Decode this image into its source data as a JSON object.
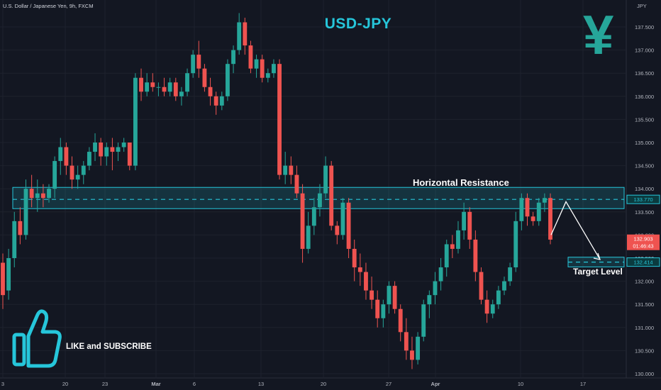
{
  "header": {
    "symbol_label": "U.S. Dollar / Japanese Yen, 9h, FXCM",
    "currency_label": "JPY"
  },
  "overlay": {
    "title": "USD-JPY",
    "yen_glyph": "¥",
    "like_text": "LIKE and SUBSCRIBE",
    "resistance_label": "Horizontal Resistance",
    "target_label": "Target Level"
  },
  "chart_data": {
    "type": "candlestick",
    "title": "",
    "ylim": [
      129.9,
      137.85
    ],
    "y_ticks": [
      "137.500",
      "137.000",
      "136.500",
      "136.000",
      "135.500",
      "135.000",
      "134.500",
      "134.000",
      "133.500",
      "133.000",
      "132.500",
      "132.000",
      "131.500",
      "131.000",
      "130.500",
      "130.000"
    ],
    "x_ticks": [
      "3",
      "20",
      "23",
      "Mar",
      "6",
      "13",
      "20",
      "27",
      "Apr",
      "10",
      "17"
    ],
    "current_price": "132.903",
    "countdown": "01:46:43",
    "resistance_zone": {
      "top": 134.03,
      "bottom": 133.57,
      "level": "133.770"
    },
    "target_zone": {
      "top": 132.52,
      "bottom": 132.31,
      "level": "132.414"
    },
    "projection": [
      133.77,
      133.0,
      132.5
    ],
    "colors": {
      "up": "#26a69a",
      "down": "#ef5350",
      "zone": "#26c6da",
      "background": "#131722"
    },
    "candles": [
      [
        132.4,
        132.6,
        131.4,
        131.7
      ],
      [
        131.8,
        132.7,
        131.6,
        132.5
      ],
      [
        132.5,
        133.5,
        132.3,
        133.3
      ],
      [
        133.3,
        133.6,
        132.8,
        133.0
      ],
      [
        133.0,
        134.2,
        132.9,
        134.0
      ],
      [
        134.0,
        134.3,
        133.6,
        133.8
      ],
      [
        133.8,
        134.2,
        133.5,
        133.9
      ],
      [
        133.9,
        134.1,
        133.6,
        133.8
      ],
      [
        133.8,
        134.1,
        133.7,
        134.0
      ],
      [
        134.0,
        134.7,
        133.8,
        134.6
      ],
      [
        134.6,
        135.1,
        134.3,
        134.9
      ],
      [
        134.9,
        135.0,
        134.3,
        134.5
      ],
      [
        134.5,
        134.7,
        134.0,
        134.2
      ],
      [
        134.2,
        134.5,
        134.0,
        134.3
      ],
      [
        134.3,
        134.6,
        134.1,
        134.5
      ],
      [
        134.5,
        134.9,
        134.4,
        134.8
      ],
      [
        134.8,
        135.2,
        134.6,
        135.0
      ],
      [
        135.0,
        135.1,
        134.5,
        134.7
      ],
      [
        134.7,
        135.0,
        134.5,
        134.9
      ],
      [
        134.9,
        135.1,
        134.4,
        134.8
      ],
      [
        134.8,
        135.0,
        134.6,
        134.9
      ],
      [
        134.9,
        135.1,
        134.8,
        135.0
      ],
      [
        135.0,
        135.0,
        134.4,
        134.5
      ],
      [
        134.5,
        136.5,
        134.4,
        136.4
      ],
      [
        136.4,
        136.6,
        135.9,
        136.1
      ],
      [
        136.1,
        136.5,
        136.0,
        136.3
      ],
      [
        136.3,
        136.5,
        136.1,
        136.2
      ],
      [
        136.2,
        136.3,
        136.0,
        136.2
      ],
      [
        136.2,
        136.4,
        136.0,
        136.1
      ],
      [
        136.1,
        136.4,
        136.0,
        136.3
      ],
      [
        136.3,
        136.4,
        135.9,
        136.0
      ],
      [
        136.0,
        136.2,
        135.8,
        136.1
      ],
      [
        136.1,
        136.6,
        136.0,
        136.5
      ],
      [
        136.5,
        137.0,
        136.4,
        136.9
      ],
      [
        136.9,
        137.2,
        136.4,
        136.6
      ],
      [
        136.6,
        136.7,
        136.1,
        136.2
      ],
      [
        136.2,
        136.4,
        135.8,
        136.0
      ],
      [
        136.0,
        136.1,
        135.6,
        135.8
      ],
      [
        135.8,
        136.1,
        135.7,
        136.0
      ],
      [
        136.0,
        136.8,
        135.9,
        136.7
      ],
      [
        136.7,
        137.1,
        136.5,
        137.0
      ],
      [
        137.0,
        137.8,
        136.9,
        137.6
      ],
      [
        137.6,
        137.7,
        136.9,
        137.1
      ],
      [
        137.1,
        137.2,
        136.5,
        136.6
      ],
      [
        136.6,
        136.9,
        136.4,
        136.8
      ],
      [
        136.8,
        136.9,
        136.3,
        136.4
      ],
      [
        136.4,
        136.6,
        136.3,
        136.5
      ],
      [
        136.5,
        136.8,
        136.4,
        136.7
      ],
      [
        136.7,
        136.8,
        134.2,
        134.3
      ],
      [
        134.3,
        134.8,
        134.1,
        134.5
      ],
      [
        134.5,
        134.7,
        134.1,
        134.3
      ],
      [
        134.3,
        134.5,
        133.8,
        133.9
      ],
      [
        133.9,
        134.1,
        132.4,
        132.7
      ],
      [
        132.7,
        133.5,
        132.6,
        133.2
      ],
      [
        133.2,
        133.8,
        133.0,
        133.6
      ],
      [
        133.6,
        134.1,
        133.4,
        133.9
      ],
      [
        133.9,
        134.7,
        133.8,
        134.5
      ],
      [
        134.5,
        134.6,
        133.1,
        133.2
      ],
      [
        133.2,
        133.3,
        132.8,
        133.0
      ],
      [
        133.0,
        133.8,
        132.9,
        133.7
      ],
      [
        133.7,
        133.8,
        132.5,
        132.7
      ],
      [
        132.7,
        132.9,
        132.0,
        132.3
      ],
      [
        132.3,
        132.6,
        131.9,
        132.2
      ],
      [
        132.2,
        132.4,
        131.6,
        131.8
      ],
      [
        131.8,
        132.1,
        131.4,
        131.6
      ],
      [
        131.6,
        131.8,
        131.0,
        131.2
      ],
      [
        131.2,
        131.6,
        131.0,
        131.5
      ],
      [
        131.5,
        132.0,
        131.3,
        131.9
      ],
      [
        131.9,
        132.0,
        131.3,
        131.4
      ],
      [
        131.4,
        131.5,
        130.7,
        130.9
      ],
      [
        130.9,
        131.2,
        130.3,
        130.5
      ],
      [
        130.5,
        130.8,
        130.1,
        130.3
      ],
      [
        130.3,
        130.9,
        130.2,
        130.8
      ],
      [
        130.8,
        131.6,
        130.7,
        131.5
      ],
      [
        131.5,
        131.8,
        131.2,
        131.7
      ],
      [
        131.7,
        132.2,
        131.5,
        132.0
      ],
      [
        132.0,
        132.5,
        131.8,
        132.3
      ],
      [
        132.3,
        132.9,
        132.1,
        132.8
      ],
      [
        132.8,
        133.0,
        132.5,
        132.7
      ],
      [
        132.7,
        133.3,
        132.6,
        133.1
      ],
      [
        133.1,
        133.7,
        132.9,
        133.5
      ],
      [
        133.5,
        133.6,
        132.7,
        132.9
      ],
      [
        132.9,
        133.1,
        132.0,
        132.2
      ],
      [
        132.2,
        132.3,
        131.5,
        131.6
      ],
      [
        131.6,
        131.8,
        131.1,
        131.3
      ],
      [
        131.3,
        131.6,
        131.2,
        131.5
      ],
      [
        131.5,
        131.9,
        131.4,
        131.8
      ],
      [
        131.8,
        132.1,
        131.7,
        132.0
      ],
      [
        132.0,
        132.4,
        131.9,
        132.3
      ],
      [
        132.3,
        133.5,
        132.2,
        133.3
      ],
      [
        133.3,
        133.9,
        133.1,
        133.8
      ],
      [
        133.8,
        133.9,
        133.2,
        133.4
      ],
      [
        133.4,
        133.5,
        133.2,
        133.3
      ],
      [
        133.3,
        133.8,
        133.2,
        133.7
      ],
      [
        133.7,
        133.9,
        133.5,
        133.8
      ],
      [
        133.8,
        133.9,
        132.8,
        132.9
      ]
    ]
  }
}
